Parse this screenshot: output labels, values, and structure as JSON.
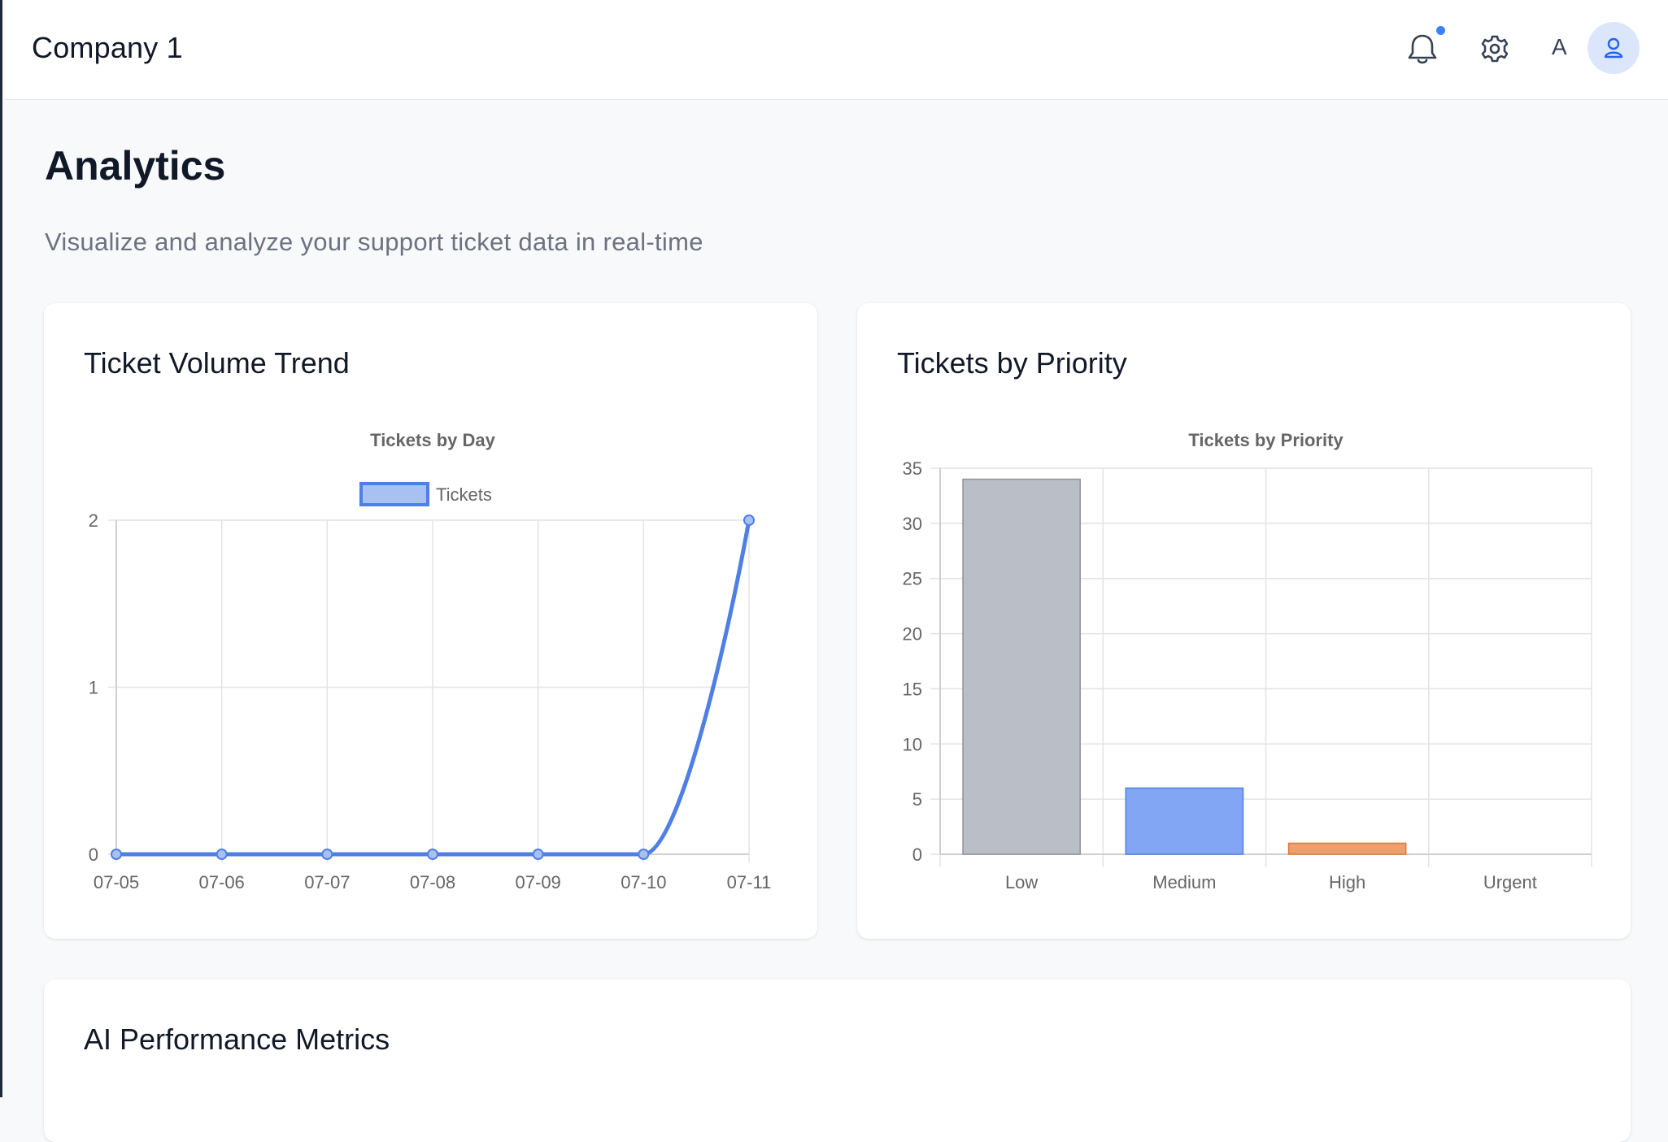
{
  "header": {
    "company_name": "Company 1",
    "user_initial": "A",
    "icons": [
      "bell-icon",
      "gear-icon",
      "user-icon"
    ],
    "notification_dot_color": "#3b82f6"
  },
  "page": {
    "title": "Analytics",
    "subtitle": "Visualize and analyze your support ticket data in real-time"
  },
  "cards": {
    "volume_title": "Ticket Volume Trend",
    "priority_title": "Tickets by Priority",
    "ai_title": "AI Performance Metrics"
  },
  "chart_data": [
    {
      "type": "line",
      "title": "Tickets by Day",
      "x": [
        "07-05",
        "07-06",
        "07-07",
        "07-08",
        "07-09",
        "07-10",
        "07-11"
      ],
      "series": [
        {
          "name": "Tickets",
          "values": [
            0,
            0,
            0,
            0,
            0,
            0,
            2
          ],
          "color": "#4e7fe6"
        }
      ],
      "ylim": [
        0,
        2
      ],
      "yticks": [
        0,
        1,
        2
      ],
      "grid": true,
      "legend": "top"
    },
    {
      "type": "bar",
      "title": "Tickets by Priority",
      "categories": [
        "Low",
        "Medium",
        "High",
        "Urgent"
      ],
      "values": [
        34,
        6,
        1,
        0
      ],
      "colors": [
        "#babec6",
        "#82a6f4",
        "#eda06e",
        "#f87171"
      ],
      "ylim": [
        0,
        35
      ],
      "yticks": [
        0,
        5,
        10,
        15,
        20,
        25,
        30,
        35
      ],
      "grid": true
    }
  ]
}
